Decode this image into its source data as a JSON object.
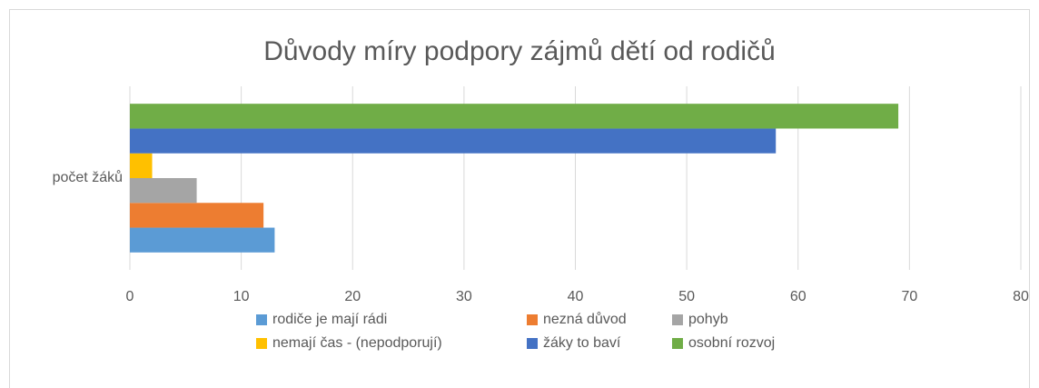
{
  "chart_data": {
    "type": "hbar",
    "title": "Důvody míry podpory zájmů dětí od rodičů",
    "categories": [
      "počet žáků"
    ],
    "series": [
      {
        "name": "rodiče je mají rádi",
        "color": "#5b9bd5",
        "values": [
          13
        ]
      },
      {
        "name": "nezná důvod",
        "color": "#ed7d31",
        "values": [
          12
        ]
      },
      {
        "name": "pohyb",
        "color": "#a5a5a5",
        "values": [
          6
        ]
      },
      {
        "name": "nemají čas - (nepodporují)",
        "color": "#ffc000",
        "values": [
          2
        ]
      },
      {
        "name": "žáky to baví",
        "color": "#4472c4",
        "values": [
          58
        ]
      },
      {
        "name": "osobní rozvoj",
        "color": "#70ad47",
        "values": [
          69
        ]
      }
    ],
    "xlim": [
      0,
      80
    ],
    "xticks": [
      0,
      10,
      20,
      30,
      40,
      50,
      60,
      70,
      80
    ],
    "grid": true,
    "legend": "bottom"
  }
}
